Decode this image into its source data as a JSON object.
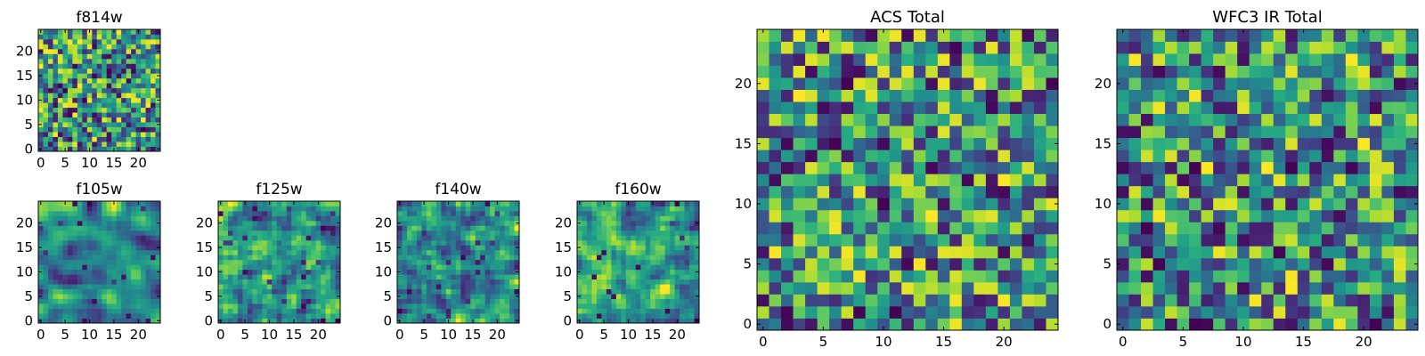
{
  "chart_data": {
    "type": "heatmap",
    "colormap": "viridis",
    "colors": {
      "low": "#440154",
      "mid": "#21918c",
      "high": "#fde725"
    },
    "panels": [
      {
        "id": "f814w",
        "title": "f814w",
        "grid_size": 25,
        "xlim": [
          0,
          24
        ],
        "ylim": [
          0,
          24
        ],
        "xticks": [
          0,
          5,
          10,
          15,
          20
        ],
        "yticks": [
          0,
          5,
          10,
          15,
          20
        ],
        "noise_seed": 11,
        "smoothness": 0,
        "value_bias": 0.62
      },
      {
        "id": "f105w",
        "title": "f105w",
        "grid_size": 25,
        "xlim": [
          0,
          24
        ],
        "ylim": [
          0,
          24
        ],
        "xticks": [
          0,
          5,
          10,
          15,
          20
        ],
        "yticks": [
          0,
          5,
          10,
          15,
          20
        ],
        "noise_seed": 23,
        "smoothness": 2,
        "value_bias": 0.72
      },
      {
        "id": "f125w",
        "title": "f125w",
        "grid_size": 25,
        "xlim": [
          0,
          24
        ],
        "ylim": [
          0,
          24
        ],
        "xticks": [
          0,
          5,
          10,
          15,
          20
        ],
        "yticks": [
          0,
          5,
          10,
          15,
          20
        ],
        "noise_seed": 37,
        "smoothness": 1,
        "value_bias": 0.66
      },
      {
        "id": "f140w",
        "title": "f140w",
        "grid_size": 25,
        "xlim": [
          0,
          24
        ],
        "ylim": [
          0,
          24
        ],
        "xticks": [
          0,
          5,
          10,
          15,
          20
        ],
        "yticks": [
          0,
          5,
          10,
          15,
          20
        ],
        "noise_seed": 41,
        "smoothness": 1,
        "value_bias": 0.6
      },
      {
        "id": "f160w",
        "title": "f160w",
        "grid_size": 25,
        "xlim": [
          0,
          24
        ],
        "ylim": [
          0,
          24
        ],
        "xticks": [
          0,
          5,
          10,
          15,
          20
        ],
        "yticks": [
          0,
          5,
          10,
          15,
          20
        ],
        "noise_seed": 53,
        "smoothness": 1,
        "value_bias": 0.64
      },
      {
        "id": "acs_total",
        "title": "ACS Total",
        "grid_size": 25,
        "xlim": [
          0,
          24
        ],
        "ylim": [
          0,
          24
        ],
        "xticks": [
          0,
          5,
          10,
          15,
          20
        ],
        "yticks": [
          0,
          5,
          10,
          15,
          20
        ],
        "noise_seed": 67,
        "smoothness": 0,
        "value_bias": 0.66
      },
      {
        "id": "wfc3_ir_total",
        "title": "WFC3 IR Total",
        "grid_size": 25,
        "xlim": [
          0,
          24
        ],
        "ylim": [
          0,
          24
        ],
        "xticks": [
          0,
          5,
          10,
          15,
          20
        ],
        "yticks": [
          0,
          5,
          10,
          15,
          20
        ],
        "noise_seed": 79,
        "smoothness": 0,
        "value_bias": 0.58
      }
    ]
  }
}
